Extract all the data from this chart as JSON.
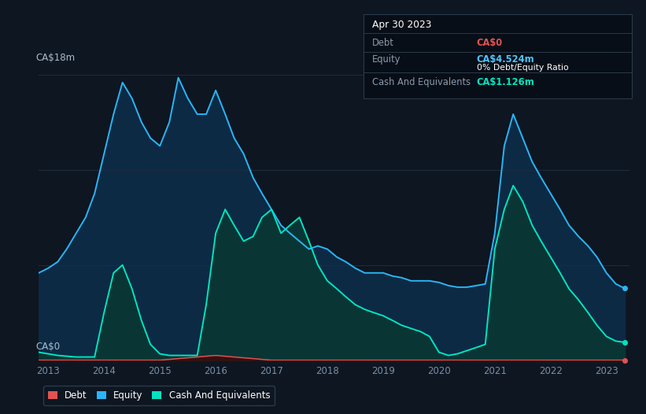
{
  "background_color": "#0e1621",
  "plot_bg_color": "#0e1621",
  "grid_color": "#1e2d3d",
  "title_box": {
    "date": "Apr 30 2023",
    "debt_label": "Debt",
    "debt_value": "CA$0",
    "equity_label": "Equity",
    "equity_value": "CA$4.524m",
    "ratio_text": "0% Debt/Equity Ratio",
    "cash_label": "Cash And Equivalents",
    "cash_value": "CA$1.126m",
    "debt_color": "#e05252",
    "equity_color": "#4fc3f7",
    "cash_color": "#00e5c0",
    "label_color": "#8899aa",
    "bold_color": "#ffffff",
    "ratio_bold": "#ffffff",
    "box_bg": "#080e17",
    "box_border": "#2a3a4a"
  },
  "ylabel_text": "CA$18m",
  "y0_text": "CA$0",
  "ylim": [
    0,
    18
  ],
  "equity_color": "#29b6f6",
  "equity_fill": "#0d2a45",
  "cash_color": "#00e5c0",
  "cash_fill": "#0a3535",
  "debt_color": "#e05252",
  "debt_fill": "#3a0d0d",
  "legend_debt_color": "#e05252",
  "legend_equity_color": "#29b6f6",
  "legend_cash_color": "#00e5c0",
  "years": [
    2012.83,
    2013.0,
    2013.17,
    2013.33,
    2013.5,
    2013.67,
    2013.83,
    2014.0,
    2014.17,
    2014.33,
    2014.5,
    2014.67,
    2014.83,
    2015.0,
    2015.17,
    2015.33,
    2015.5,
    2015.67,
    2015.83,
    2016.0,
    2016.17,
    2016.33,
    2016.5,
    2016.67,
    2016.83,
    2017.0,
    2017.17,
    2017.33,
    2017.5,
    2017.67,
    2017.83,
    2018.0,
    2018.17,
    2018.33,
    2018.5,
    2018.67,
    2018.83,
    2019.0,
    2019.17,
    2019.33,
    2019.5,
    2019.67,
    2019.83,
    2020.0,
    2020.17,
    2020.33,
    2020.5,
    2020.67,
    2020.83,
    2021.0,
    2021.17,
    2021.33,
    2021.5,
    2021.67,
    2021.83,
    2022.0,
    2022.17,
    2022.33,
    2022.5,
    2022.67,
    2022.83,
    2023.0,
    2023.17,
    2023.33
  ],
  "equity": [
    5.5,
    5.8,
    6.2,
    7.0,
    8.0,
    9.0,
    10.5,
    13.0,
    15.5,
    17.5,
    16.5,
    15.0,
    14.0,
    13.5,
    15.0,
    17.8,
    16.5,
    15.5,
    15.5,
    17.0,
    15.5,
    14.0,
    13.0,
    11.5,
    10.5,
    9.5,
    8.5,
    8.0,
    7.5,
    7.0,
    7.2,
    7.0,
    6.5,
    6.2,
    5.8,
    5.5,
    5.5,
    5.5,
    5.3,
    5.2,
    5.0,
    5.0,
    5.0,
    4.9,
    4.7,
    4.6,
    4.6,
    4.7,
    4.8,
    8.0,
    13.5,
    15.5,
    14.0,
    12.5,
    11.5,
    10.5,
    9.5,
    8.5,
    7.8,
    7.2,
    6.5,
    5.5,
    4.8,
    4.524
  ],
  "cash": [
    0.5,
    0.4,
    0.3,
    0.25,
    0.2,
    0.2,
    0.2,
    3.0,
    5.5,
    6.0,
    4.5,
    2.5,
    1.0,
    0.4,
    0.3,
    0.3,
    0.3,
    0.3,
    3.5,
    8.0,
    9.5,
    8.5,
    7.5,
    7.8,
    9.0,
    9.5,
    8.0,
    8.5,
    9.0,
    7.5,
    6.0,
    5.0,
    4.5,
    4.0,
    3.5,
    3.2,
    3.0,
    2.8,
    2.5,
    2.2,
    2.0,
    1.8,
    1.5,
    0.5,
    0.3,
    0.4,
    0.6,
    0.8,
    1.0,
    7.0,
    9.5,
    11.0,
    10.0,
    8.5,
    7.5,
    6.5,
    5.5,
    4.5,
    3.8,
    3.0,
    2.2,
    1.5,
    1.2,
    1.126
  ],
  "debt": [
    0.0,
    0.0,
    0.0,
    0.0,
    0.0,
    0.0,
    0.0,
    0.0,
    0.0,
    0.0,
    0.0,
    0.0,
    0.0,
    0.0,
    0.05,
    0.1,
    0.15,
    0.2,
    0.25,
    0.3,
    0.25,
    0.2,
    0.15,
    0.1,
    0.05,
    0.0,
    0.0,
    0.0,
    0.0,
    0.0,
    0.0,
    0.0,
    0.0,
    0.0,
    0.0,
    0.0,
    0.0,
    0.0,
    0.0,
    0.0,
    0.0,
    0.0,
    0.0,
    0.0,
    0.0,
    0.0,
    0.0,
    0.0,
    0.0,
    0.0,
    0.0,
    0.0,
    0.0,
    0.0,
    0.0,
    0.0,
    0.0,
    0.0,
    0.0,
    0.0,
    0.0,
    0.0,
    0.0,
    0.0
  ],
  "x_ticks": [
    2013,
    2014,
    2015,
    2016,
    2017,
    2018,
    2019,
    2020,
    2021,
    2022,
    2023
  ],
  "legend_items": [
    "Debt",
    "Equity",
    "Cash And Equivalents"
  ]
}
